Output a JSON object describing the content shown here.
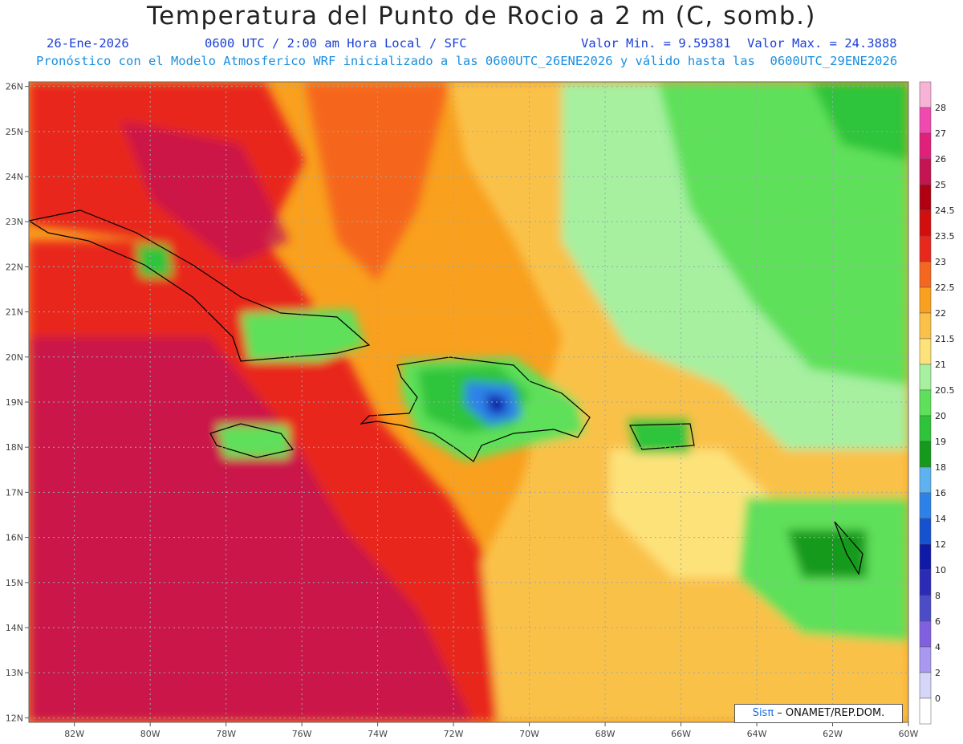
{
  "header": {
    "title": "Temperatura del Punto de Rocio a 2 m (C, somb.)",
    "date": "26-Ene-2026",
    "time": "0600 UTC / 2:00 am Hora Local / SFC",
    "min_value": "Valor Min. = 9.59381",
    "max_value": "Valor Max. = 24.3888",
    "forecast_line": "Pronóstico con el Modelo Atmosferico WRF inicializado a las 0600UTC_26ENE2026 y válido hasta las  0600UTC_29ENE2026"
  },
  "map": {
    "x_ticks": [
      "82W",
      "80W",
      "78W",
      "76W",
      "74W",
      "72W",
      "70W",
      "68W",
      "66W",
      "64W",
      "62W",
      "60W"
    ],
    "y_ticks": [
      "26N",
      "25N",
      "24N",
      "23N",
      "22N",
      "21N",
      "20N",
      "19N",
      "18N",
      "17N",
      "16N",
      "15N",
      "14N",
      "13N",
      "12N"
    ],
    "lon_range": [
      -83.2,
      -60.0
    ],
    "lat_range": [
      11.9,
      26.1
    ]
  },
  "legend": {
    "labels": [
      "28",
      "27",
      "26",
      "25",
      "24.5",
      "23.5",
      "23",
      "22.5",
      "22",
      "21.5",
      "21",
      "20.5",
      "20",
      "19",
      "18",
      "16",
      "14",
      "12",
      "10",
      "8",
      "6",
      "4",
      "2",
      "0"
    ],
    "colors": [
      "#f7b3d6",
      "#f04ab0",
      "#e0207a",
      "#c41552",
      "#b00012",
      "#d20e0e",
      "#e8281c",
      "#f5661e",
      "#f9a01e",
      "#fac148",
      "#fde27a",
      "#a6f0a0",
      "#5ee05a",
      "#2ec43a",
      "#149a1c",
      "#5eb2f0",
      "#2d82ea",
      "#1652cf",
      "#0f1aa8",
      "#2b2bb8",
      "#4c4cc9",
      "#8060e0",
      "#a898ef",
      "#d6d6f8",
      "#ffffff"
    ]
  },
  "credit": {
    "logo": "Sisπ",
    "text": " – ONAMET/REP.DOM."
  }
}
